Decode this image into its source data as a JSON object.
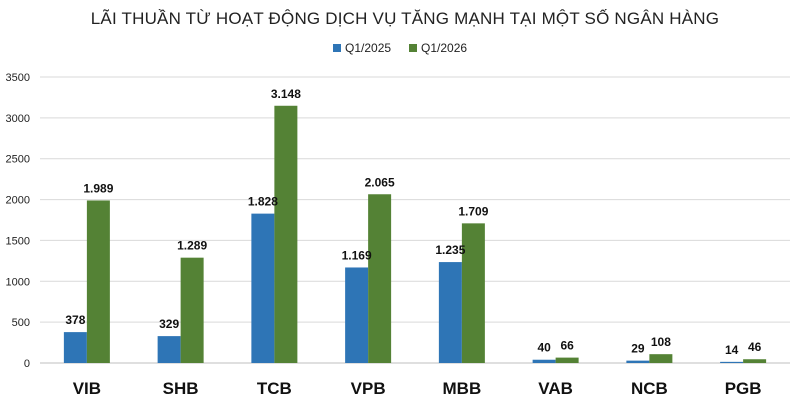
{
  "chart_data": {
    "type": "bar",
    "title": "LÃI THUẦN TỪ HOẠT ĐỘNG DỊCH VỤ TĂNG MẠNH TẠI MỘT SỐ NGÂN HÀNG",
    "categories": [
      "VIB",
      "SHB",
      "TCB",
      "VPB",
      "MBB",
      "VAB",
      "NCB",
      "PGB"
    ],
    "series": [
      {
        "name": "Q1/2025",
        "color": "#2e75b6",
        "values": [
          378,
          329,
          1828,
          1169,
          1235,
          40,
          29,
          14
        ],
        "labels": [
          "378",
          "329",
          "1.828",
          "1.169",
          "1.235",
          "40",
          "29",
          "14"
        ]
      },
      {
        "name": "Q1/2026",
        "color": "#548235",
        "values": [
          1989,
          1289,
          3148,
          2065,
          1709,
          66,
          108,
          46
        ],
        "labels": [
          "1.989",
          "1.289",
          "3.148",
          "2.065",
          "1.709",
          "66",
          "108",
          "46"
        ]
      }
    ],
    "yticks": [
      "0",
      "500",
      "1000",
      "1500",
      "2000",
      "2500",
      "3000",
      "3500"
    ],
    "ylim": [
      0,
      3500
    ],
    "xlabel": "",
    "ylabel": "",
    "grid": true,
    "legend_position": "top-center"
  }
}
